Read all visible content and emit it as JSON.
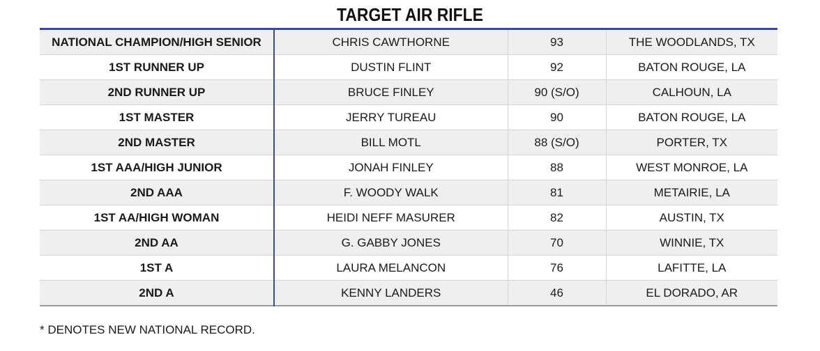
{
  "title": "TARGET AIR RIFLE",
  "rows": [
    {
      "award": "NATIONAL CHAMPION/HIGH SENIOR",
      "name": "CHRIS CAWTHORNE",
      "score": "93",
      "hometown": "THE WOODLANDS, TX"
    },
    {
      "award": "1ST RUNNER UP",
      "name": "DUSTIN FLINT",
      "score": "92",
      "hometown": "BATON ROUGE, LA"
    },
    {
      "award": "2ND RUNNER UP",
      "name": "BRUCE FINLEY",
      "score": "90 (S/O)",
      "hometown": "CALHOUN, LA"
    },
    {
      "award": "1ST MASTER",
      "name": "JERRY TUREAU",
      "score": "90",
      "hometown": "BATON ROUGE, LA"
    },
    {
      "award": "2ND MASTER",
      "name": "BILL MOTL",
      "score": "88 (S/O)",
      "hometown": "PORTER, TX"
    },
    {
      "award": "1ST AAA/HIGH JUNIOR",
      "name": "JONAH FINLEY",
      "score": "88",
      "hometown": "WEST MONROE, LA"
    },
    {
      "award": "2ND AAA",
      "name": "F. WOODY WALK",
      "score": "81",
      "hometown": "METAIRIE, LA"
    },
    {
      "award": "1ST AA/HIGH WOMAN",
      "name": "HEIDI NEFF MASURER",
      "score": "82",
      "hometown": "AUSTIN, TX"
    },
    {
      "award": "2ND AA",
      "name": "G. GABBY JONES",
      "score": "70",
      "hometown": "WINNIE, TX"
    },
    {
      "award": "1ST A",
      "name": "LAURA MELANCON",
      "score": "76",
      "hometown": "LAFITTE, LA"
    },
    {
      "award": "2ND A",
      "name": "KENNY LANDERS",
      "score": "46",
      "hometown": "EL DORADO, AR"
    }
  ],
  "footnote": "* DENOTES NEW NATIONAL RECORD.",
  "colors": {
    "accent_rule": "#3a4a8c",
    "row_shade": "#efefef",
    "text": "#1a1a1a"
  }
}
